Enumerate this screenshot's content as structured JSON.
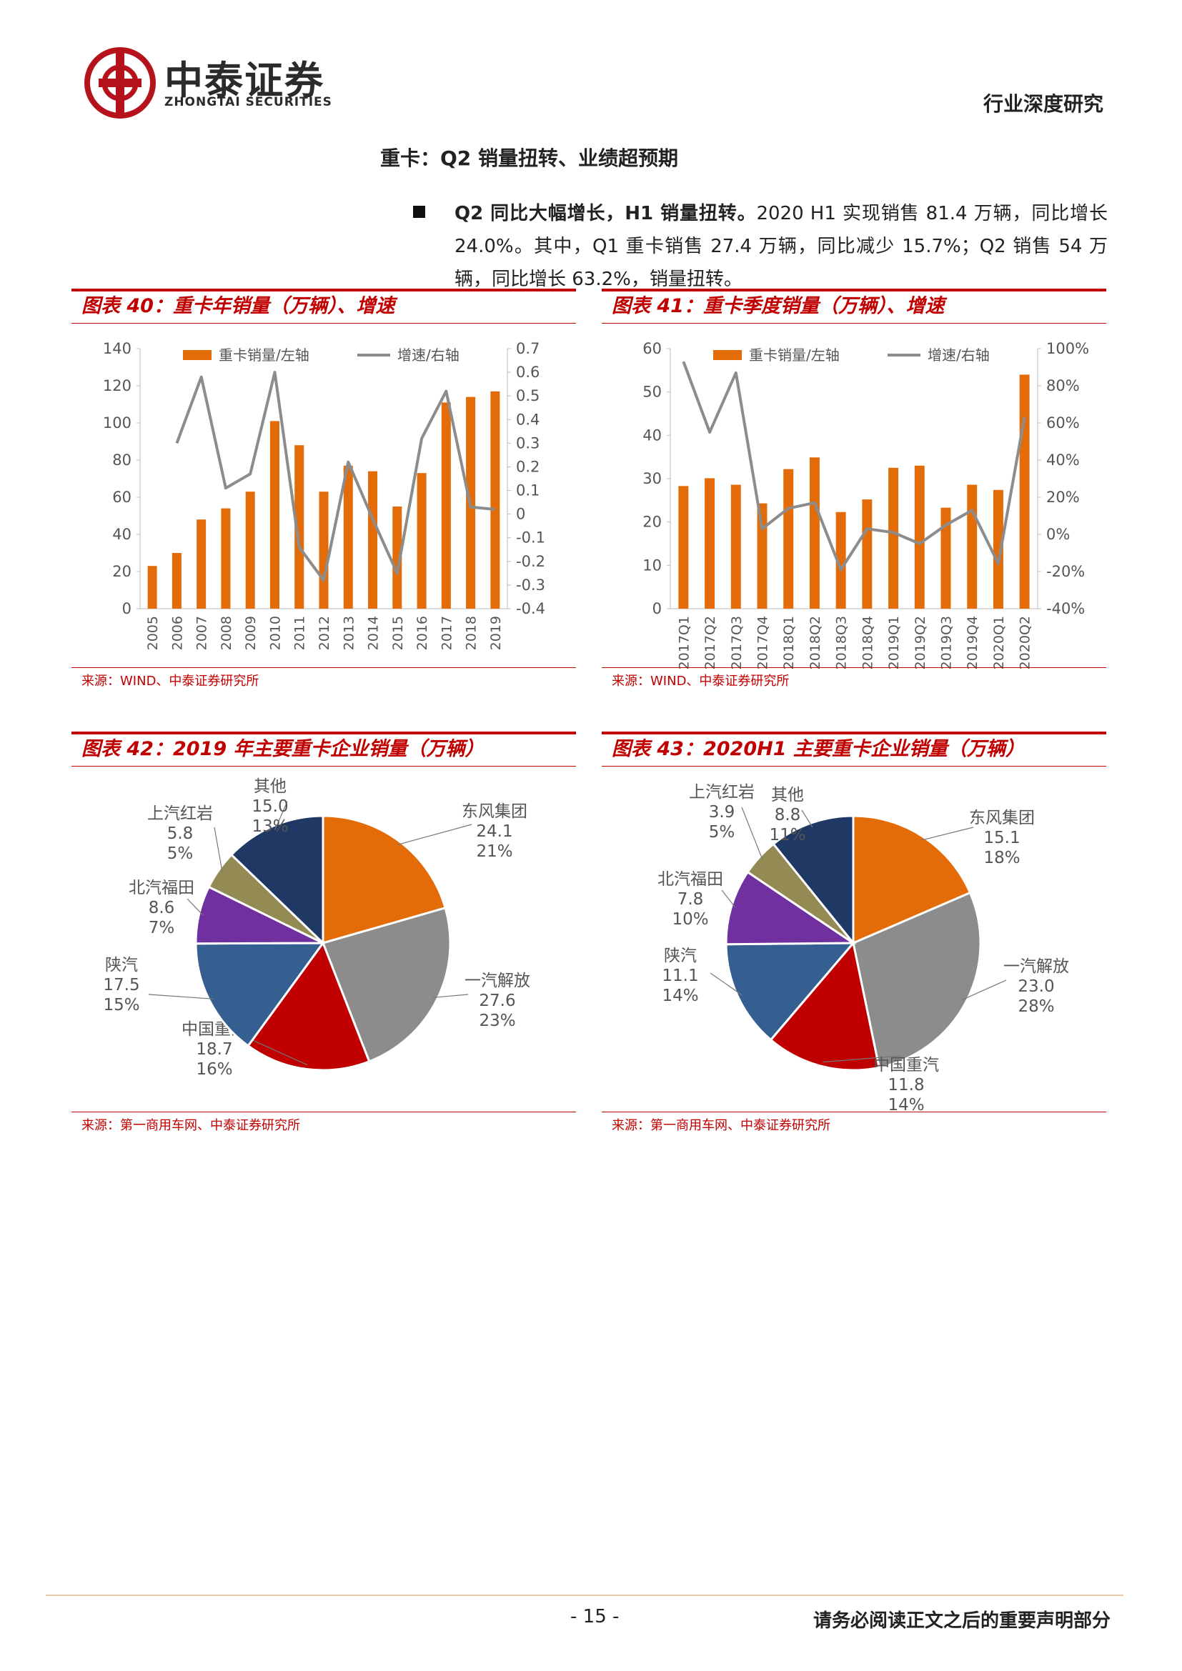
{
  "header": {
    "logo_cn": "中泰证券",
    "logo_en": "ZHONGTAI SECURITIES",
    "report_type": "行业深度研究"
  },
  "section_title": "重卡：Q2 销量扭转、业绩超预期",
  "bullet": {
    "lead": "Q2 同比大幅增长，H1 销量扭转。",
    "body": "2020 H1 实现销售 81.4 万辆，同比增长 24.0%。其中，Q1 重卡销售 27.4 万辆，同比减少 15.7%；Q2 销售 54 万辆，同比增长 63.2%，销量扭转。"
  },
  "figures": {
    "fig40": {
      "title": "图表 40：重卡年销量（万辆）、增速",
      "source": "来源：WIND、中泰证券研究所"
    },
    "fig41": {
      "title": "图表 41：重卡季度销量（万辆）、增速",
      "source": "来源：WIND、中泰证券研究所"
    },
    "fig42": {
      "title": "图表 42：2019 年主要重卡企业销量（万辆）",
      "source": "来源：第一商用车网、中泰证券研究所"
    },
    "fig43": {
      "title": "图表 43：2020H1 主要重卡企业销量（万辆）",
      "source": "来源：第一商用车网、中泰证券研究所"
    }
  },
  "colors": {
    "bar": "#E36C09",
    "line": "#8C8C8C",
    "accent_red": "#C00000",
    "pie": [
      "#E36C09",
      "#8C8C8C",
      "#C00000",
      "#365F91",
      "#7030A0",
      "#948A54",
      "#1F3864"
    ]
  },
  "chart_data": [
    {
      "type": "bar",
      "combo_line": true,
      "categories": [
        "2005",
        "2006",
        "2007",
        "2008",
        "2009",
        "2010",
        "2011",
        "2012",
        "2013",
        "2014",
        "2015",
        "2016",
        "2017",
        "2018",
        "2019"
      ],
      "series": [
        {
          "name": "重卡销量/左轴",
          "type": "bar",
          "axis": "left",
          "values": [
            23,
            30,
            48,
            54,
            63,
            101,
            88,
            63,
            77,
            74,
            55,
            73,
            111,
            114,
            117
          ]
        },
        {
          "name": "增速/右轴",
          "type": "line",
          "axis": "right",
          "values": [
            null,
            0.3,
            0.58,
            0.11,
            0.17,
            0.6,
            -0.14,
            -0.28,
            0.22,
            -0.02,
            -0.25,
            0.32,
            0.52,
            0.03,
            0.02
          ]
        }
      ],
      "ylim_left": [
        0,
        140
      ],
      "yticks_left": [
        "0",
        "20",
        "40",
        "60",
        "80",
        "100",
        "120",
        "140"
      ],
      "ylim_right": [
        -0.4,
        0.7
      ],
      "yticks_right": [
        "-0.4",
        "-0.3",
        "-0.2",
        "-0.1",
        "0",
        "0.1",
        "0.2",
        "0.3",
        "0.4",
        "0.5",
        "0.6",
        "0.7"
      ],
      "legend_position": "top"
    },
    {
      "type": "bar",
      "combo_line": true,
      "categories": [
        "2017Q1",
        "2017Q2",
        "2017Q3",
        "2017Q4",
        "2018Q1",
        "2018Q2",
        "2018Q3",
        "2018Q4",
        "2019Q1",
        "2019Q2",
        "2019Q3",
        "2019Q4",
        "2020Q1",
        "2020Q2"
      ],
      "series": [
        {
          "name": "重卡销量/左轴",
          "type": "bar",
          "axis": "left",
          "values": [
            28.3,
            30.1,
            28.6,
            24.3,
            32.2,
            34.9,
            22.3,
            25.2,
            32.5,
            33.0,
            23.3,
            28.6,
            27.4,
            54.0
          ]
        },
        {
          "name": "增速/右轴",
          "type": "line",
          "axis": "right",
          "values": [
            0.93,
            0.55,
            0.87,
            0.03,
            0.14,
            0.17,
            -0.19,
            0.03,
            0.01,
            -0.05,
            0.05,
            0.13,
            -0.157,
            0.632
          ]
        }
      ],
      "ylim_left": [
        0,
        60
      ],
      "yticks_left": [
        "0",
        "10",
        "20",
        "30",
        "40",
        "50",
        "60"
      ],
      "ylim_right": [
        -0.4,
        1.0
      ],
      "yticks_right": [
        "-40%",
        "-20%",
        "0%",
        "20%",
        "40%",
        "60%",
        "80%",
        "100%"
      ],
      "legend_position": "top"
    },
    {
      "type": "pie",
      "slices": [
        {
          "name": "东风集团",
          "value": "24.1",
          "pct": "21%",
          "num": 24.1
        },
        {
          "name": "一汽解放",
          "value": "27.6",
          "pct": "23%",
          "num": 27.6
        },
        {
          "name": "中国重汽",
          "value": "18.7",
          "pct": "16%",
          "num": 18.7
        },
        {
          "name": "陕汽",
          "value": "17.5",
          "pct": "15%",
          "num": 17.5
        },
        {
          "name": "北汽福田",
          "value": "8.6",
          "pct": "7%",
          "num": 8.6
        },
        {
          "name": "上汽红岩",
          "value": "5.8",
          "pct": "5%",
          "num": 5.8
        },
        {
          "name": "其他",
          "value": "15.0",
          "pct": "13%",
          "num": 15.0
        }
      ]
    },
    {
      "type": "pie",
      "slices": [
        {
          "name": "东风集团",
          "value": "15.1",
          "pct": "18%",
          "num": 15.1
        },
        {
          "name": "一汽解放",
          "value": "23.0",
          "pct": "28%",
          "num": 23.0
        },
        {
          "name": "中国重汽",
          "value": "11.8",
          "pct": "14%",
          "num": 11.8
        },
        {
          "name": "陕汽",
          "value": "11.1",
          "pct": "14%",
          "num": 11.1
        },
        {
          "name": "北汽福田",
          "value": "7.8",
          "pct": "10%",
          "num": 7.8
        },
        {
          "name": "上汽红岩",
          "value": "3.9",
          "pct": "5%",
          "num": 3.9
        },
        {
          "name": "其他",
          "value": "8.8",
          "pct": "11%",
          "num": 8.8
        }
      ]
    }
  ],
  "footer": {
    "page_number": "- 15 -",
    "disclaimer": "请务必阅读正文之后的重要声明部分"
  }
}
